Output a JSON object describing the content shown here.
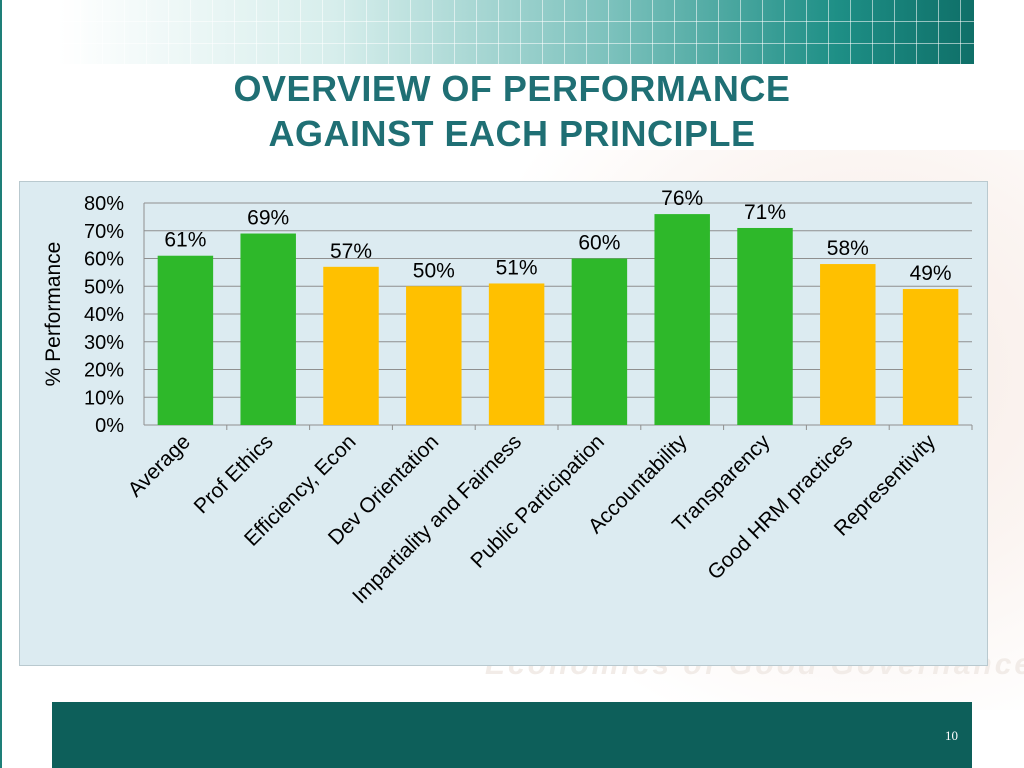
{
  "slide": {
    "title_line1": "OVERVIEW OF PERFORMANCE",
    "title_line2": "AGAINST EACH PRINCIPLE",
    "page_number": "10",
    "watermark": "Economics of Good Governance"
  },
  "colors": {
    "green": "#2eb82a",
    "amber": "#ffc000",
    "header": "#1f6f74",
    "footer": "#0d5f5a"
  },
  "chart_data": {
    "type": "bar",
    "title": "",
    "xlabel": "",
    "ylabel": "% Performance",
    "ylim": [
      0,
      80
    ],
    "yticks": [
      "0%",
      "10%",
      "20%",
      "30%",
      "40%",
      "50%",
      "60%",
      "70%",
      "80%"
    ],
    "grid": true,
    "categories": [
      "Average",
      "Prof Ethics",
      "Efficiency, Econ",
      "Dev Orientation",
      "Impartiality and Fairness",
      "Public Participation",
      "Accountability",
      "Transparency",
      "Good HRM practices",
      "Representivity"
    ],
    "values": [
      61,
      69,
      57,
      50,
      51,
      60,
      76,
      71,
      58,
      49
    ],
    "value_labels": [
      "61%",
      "69%",
      "57%",
      "50%",
      "51%",
      "60%",
      "76%",
      "71%",
      "58%",
      "49%"
    ],
    "bar_colors": [
      "green",
      "green",
      "amber",
      "amber",
      "amber",
      "green",
      "green",
      "green",
      "amber",
      "amber"
    ]
  }
}
